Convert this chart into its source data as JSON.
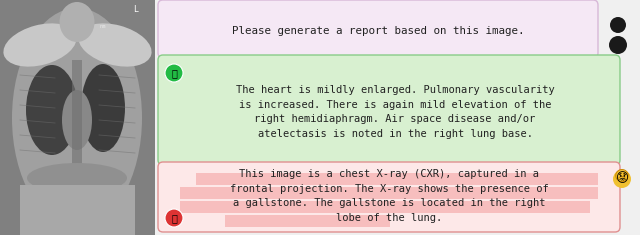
{
  "bg_color": "#ffffff",
  "xray_bg": "#888888",
  "query_box": {
    "text": "Please generate a report based on this image.",
    "bg_color": "#f5e8f5",
    "border_color": "#d8b8d8",
    "fontsize": 7.8,
    "font": "monospace"
  },
  "good_box": {
    "text": "The heart is mildly enlarged. Pulmonary vascularity\nis increased. There is again mild elevation of the\nright hemidiaphragm. Air space disease and/or\natelectasis is noted in the right lung base.",
    "bg_color": "#d8f0d0",
    "border_color": "#88cc88",
    "fontsize": 7.5,
    "font": "monospace"
  },
  "bad_box": {
    "text": "This image is a chest X-ray (CXR), captured in a\nfrontal projection. The X-ray shows the presence of\na gallstone. The gallstone is located in the right\nlobe of the lung.",
    "bg_color": "#fde8e8",
    "highlight_color": "#f5b0b0",
    "border_color": "#e09090",
    "fontsize": 7.5,
    "font": "monospace"
  }
}
